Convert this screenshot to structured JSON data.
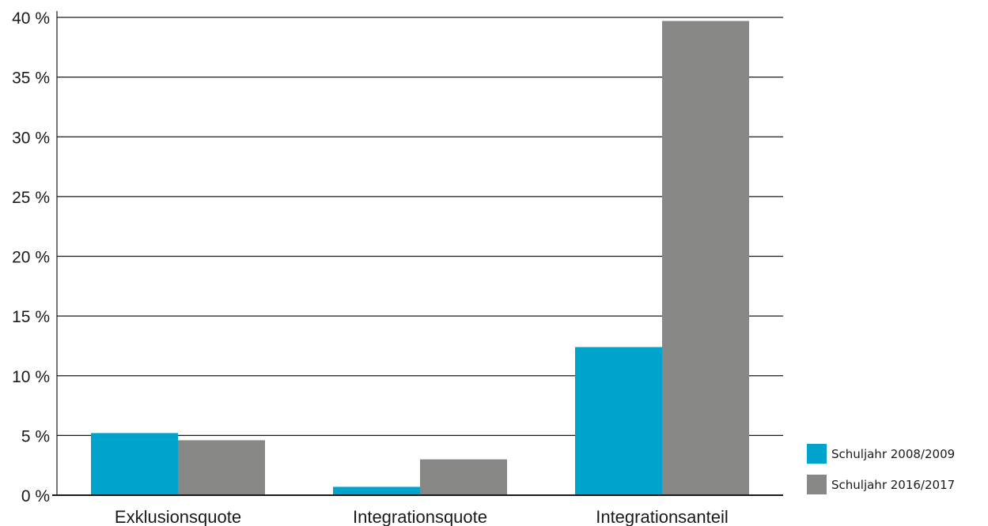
{
  "chart_data": {
    "type": "bar",
    "title": "",
    "xlabel": "",
    "ylabel": "",
    "categories": [
      "Exklusionsquote",
      "Integrationsquote",
      "Integrationsanteil"
    ],
    "series": [
      {
        "name": "Schuljahr 2008/2009",
        "values": [
          5.2,
          0.7,
          12.4
        ],
        "color": "#00a3cc"
      },
      {
        "name": "Schuljahr 2016/2017",
        "values": [
          4.6,
          3.0,
          39.7
        ],
        "color": "#878786"
      }
    ],
    "ylim": [
      0,
      40
    ],
    "yticks": [
      0,
      5,
      10,
      15,
      20,
      25,
      30,
      35,
      40
    ],
    "ytick_labels": [
      "0 %",
      "5 %",
      "10 %",
      "15 %",
      "20 %",
      "25 %",
      "30 %",
      "35 %",
      "40 %"
    ],
    "grid": true,
    "legend_position": "bottom-right"
  }
}
